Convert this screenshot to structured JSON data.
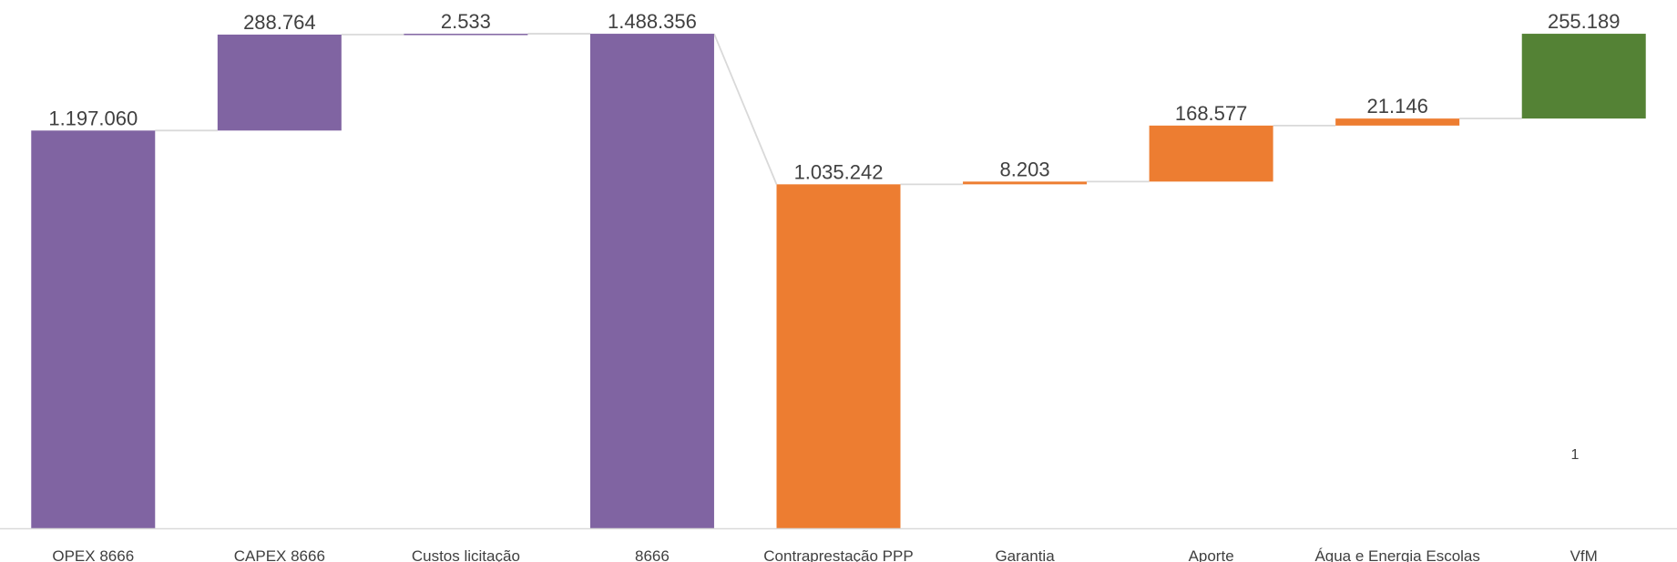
{
  "chart_data": {
    "type": "bar",
    "subtype": "waterfall",
    "title": "",
    "xlabel": "",
    "ylabel": "",
    "ylim": [
      0,
      1494000
    ],
    "grid": false,
    "legend": "none",
    "categories": [
      "OPEX 8666",
      "CAPEX 8666",
      "Custos licitação",
      "8666",
      "Contraprestação PPP",
      "Garantia",
      "Aporte",
      "Água e Energia Escolas",
      "VfM"
    ],
    "values": [
      1197060,
      288764,
      2533,
      1488356,
      1035242,
      8203,
      168577,
      21146,
      255189
    ],
    "value_labels": [
      "1.197.060",
      "288.764",
      "2.533",
      "1.488.356",
      "1.035.242",
      "8.203",
      "168.577",
      "21.146",
      "255.189"
    ],
    "base": [
      0,
      1197060,
      1485824,
      0,
      0,
      1035242,
      1043445,
      1212022,
      1233168
    ],
    "colors": [
      "#8064a2",
      "#8064a2",
      "#8064a2",
      "#8064a2",
      "#ed7d31",
      "#ed7d31",
      "#ed7d31",
      "#ed7d31",
      "#548235"
    ],
    "connector_color": "#d9d9d9",
    "annotation": "1"
  }
}
